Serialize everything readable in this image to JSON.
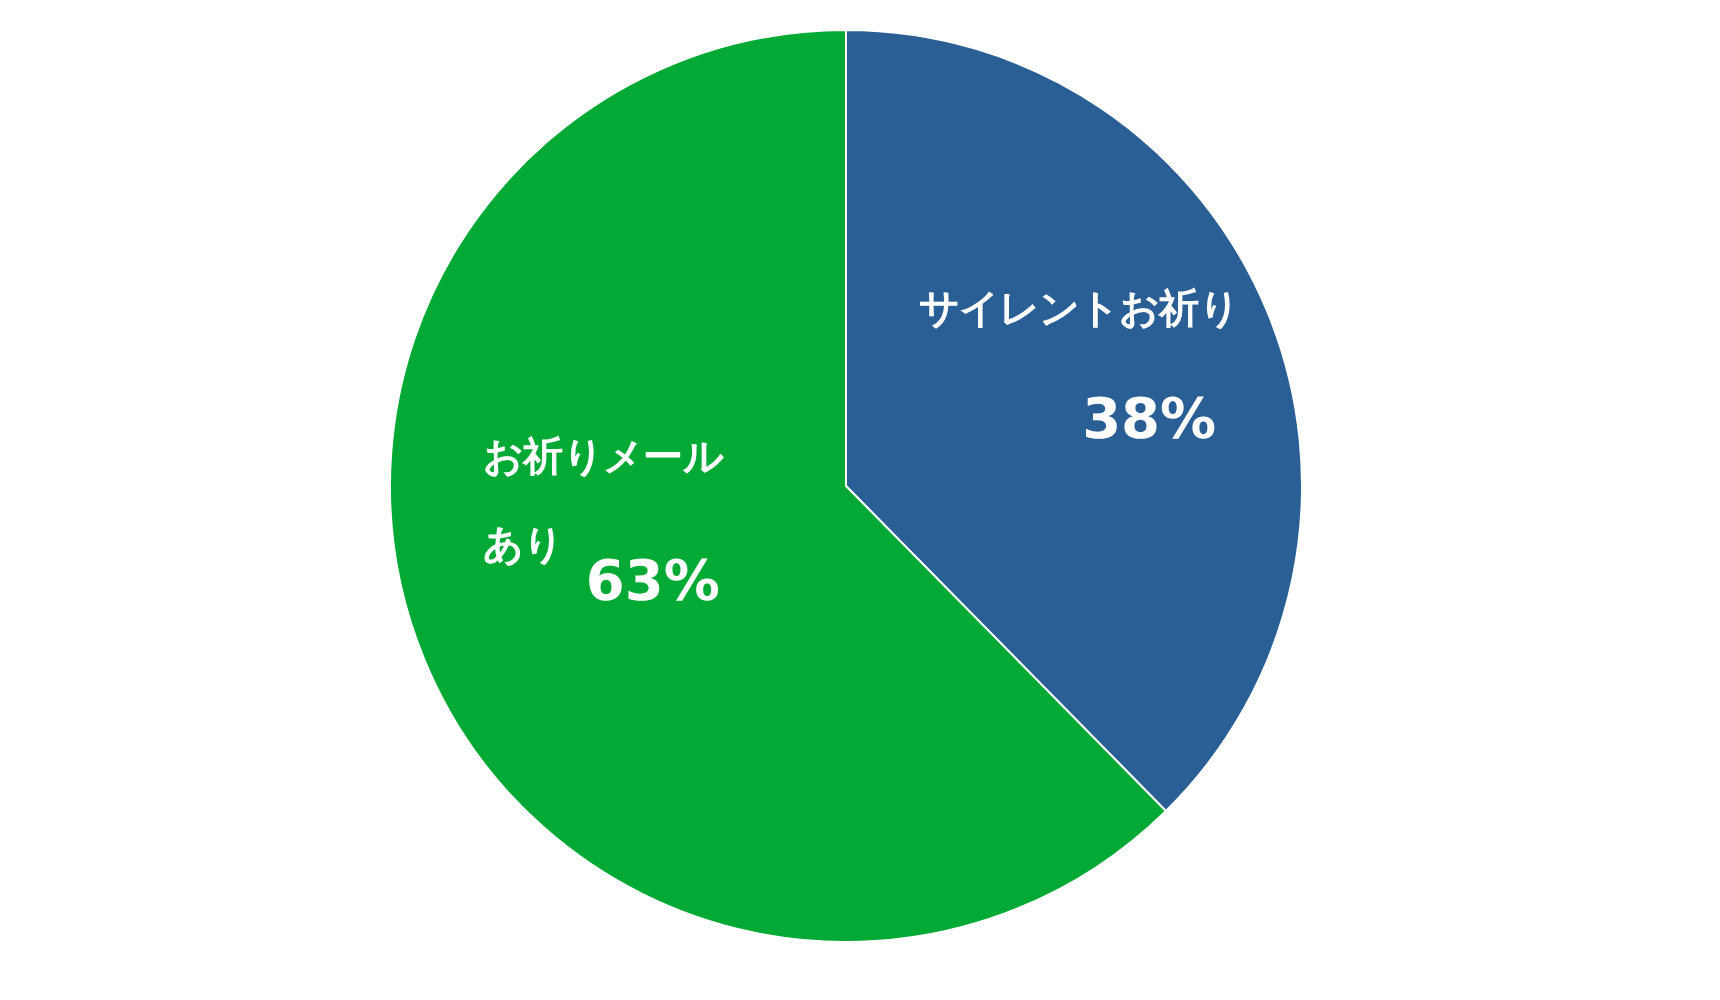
{
  "chart_data": {
    "type": "pie",
    "categories": [
      "サイレントお祈り",
      "お祈りメールあり"
    ],
    "values": [
      38,
      63
    ],
    "value_labels": [
      "38%",
      "63%"
    ],
    "colors": [
      "#2a5f96",
      "#02a935"
    ]
  }
}
